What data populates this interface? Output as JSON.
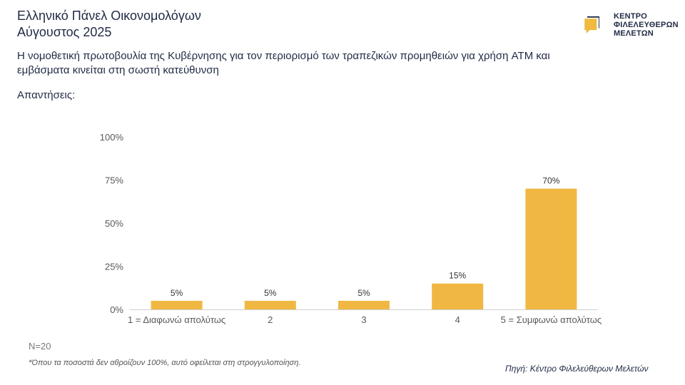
{
  "header": {
    "title_line1": "Ελληνικό Πάνελ Οικονομολόγων",
    "title_line2": "Αύγουστος 2025"
  },
  "logo": {
    "line1": "ΚΕΝΤΡΟ",
    "line2": "ΦΙΛΕΛΕΥΘΕΡΩΝ",
    "line3": "ΜΕΛΕΤΩΝ",
    "icon": "kefim-logo-mark",
    "color": "#F0B93F"
  },
  "question": {
    "line1": "Η νομοθετική πρωτοβουλία της Κυβέρνησης για τον περιορισμό των τραπεζικών προμηθειών για χρήση ATM και",
    "line2": "εμβάσματα κινείται στη σωστή κατεύθυνση"
  },
  "answers_label": "Απαντήσεις:",
  "chart_data": {
    "type": "bar",
    "categories": [
      "1 = Διαφωνώ απολύτως",
      "2",
      "3",
      "4",
      "5 = Συμφωνώ απολύτως"
    ],
    "values": [
      5,
      5,
      5,
      15,
      70
    ],
    "data_labels": [
      "5%",
      "5%",
      "5%",
      "15%",
      "70%"
    ],
    "yticks": [
      "0%",
      "25%",
      "50%",
      "75%",
      "100%"
    ],
    "ylim": [
      0,
      100
    ],
    "bar_color": "#F0B843",
    "grid": false
  },
  "notes": {
    "n": "N=20",
    "footnote": "*Όπου τα ποσοστά δεν αθροίζουν 100%, αυτό οφείλεται στη στρογγυλοποίηση.",
    "source": "Πηγή: Κέντρο Φιλελεύθερων Μελετών"
  }
}
